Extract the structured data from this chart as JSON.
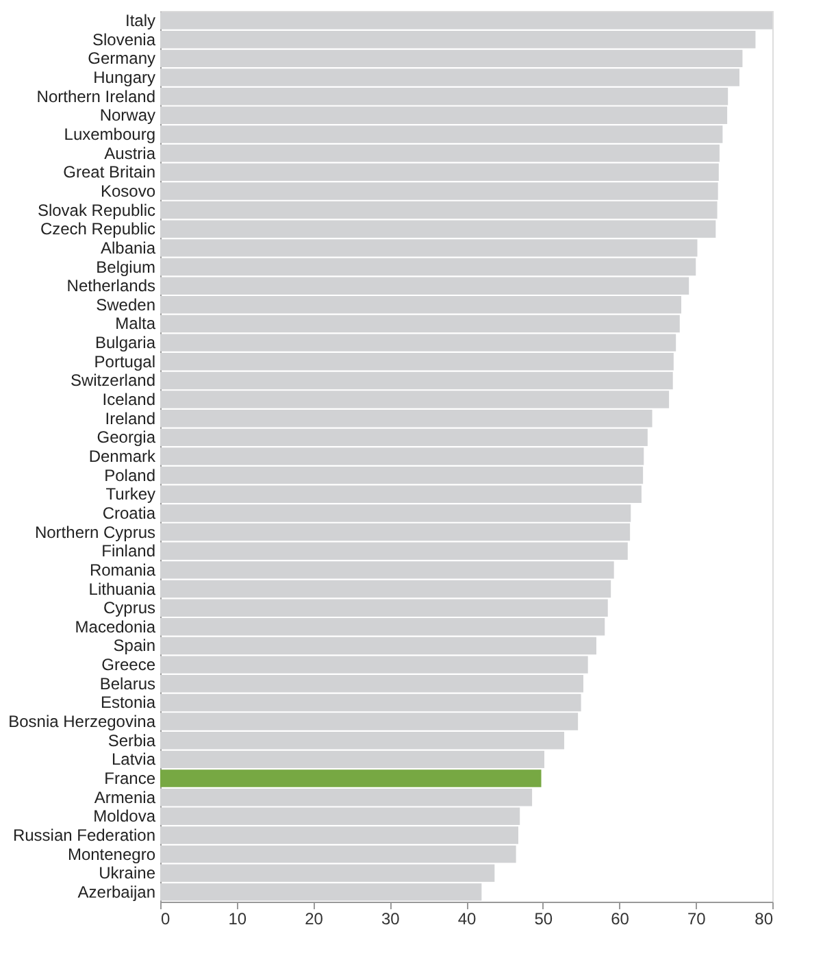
{
  "chart_data": {
    "type": "bar",
    "orientation": "horizontal",
    "categories": [
      "Italy",
      "Slovenia",
      "Germany",
      "Hungary",
      "Northern Ireland",
      "Norway",
      "Luxembourg",
      "Austria",
      "Great Britain",
      "Kosovo",
      "Slovak Republic",
      "Czech Republic",
      "Albania",
      "Belgium",
      "Netherlands",
      "Sweden",
      "Malta",
      "Bulgaria",
      "Portugal",
      "Switzerland",
      "Iceland",
      "Ireland",
      "Georgia",
      "Denmark",
      "Poland",
      "Turkey",
      "Croatia",
      "Northern Cyprus",
      "Finland",
      "Romania",
      "Lithuania",
      "Cyprus",
      "Macedonia",
      "Spain",
      "Greece",
      "Belarus",
      "Estonia",
      "Bosnia Herzegovina",
      "Serbia",
      "Latvia",
      "France",
      "Armenia",
      "Moldova",
      "Russian Federation",
      "Montenegro",
      "Ukraine",
      "Azerbaijan"
    ],
    "values": [
      80.0,
      77.8,
      76.1,
      75.7,
      74.2,
      74.1,
      73.5,
      73.1,
      73.0,
      72.9,
      72.8,
      72.6,
      70.2,
      70.0,
      69.1,
      68.1,
      67.9,
      67.4,
      67.1,
      67.0,
      66.5,
      64.3,
      63.7,
      63.2,
      63.1,
      62.9,
      61.5,
      61.4,
      61.1,
      59.3,
      58.9,
      58.5,
      58.1,
      57.0,
      55.9,
      55.3,
      55.0,
      54.6,
      52.8,
      50.2,
      49.8,
      48.6,
      47.0,
      46.8,
      46.5,
      43.7,
      42.0
    ],
    "colors": [
      "#d1d2d4",
      "#d1d2d4",
      "#d1d2d4",
      "#d1d2d4",
      "#d1d2d4",
      "#d1d2d4",
      "#d1d2d4",
      "#d1d2d4",
      "#d1d2d4",
      "#d1d2d4",
      "#d1d2d4",
      "#d1d2d4",
      "#d1d2d4",
      "#d1d2d4",
      "#d1d2d4",
      "#d1d2d4",
      "#d1d2d4",
      "#d1d2d4",
      "#d1d2d4",
      "#d1d2d4",
      "#d1d2d4",
      "#d1d2d4",
      "#d1d2d4",
      "#d1d2d4",
      "#d1d2d4",
      "#d1d2d4",
      "#d1d2d4",
      "#d1d2d4",
      "#d1d2d4",
      "#d1d2d4",
      "#d1d2d4",
      "#d1d2d4",
      "#d1d2d4",
      "#d1d2d4",
      "#d1d2d4",
      "#d1d2d4",
      "#d1d2d4",
      "#d1d2d4",
      "#d1d2d4",
      "#d1d2d4",
      "#77a843",
      "#d1d2d4",
      "#d1d2d4",
      "#d1d2d4",
      "#d1d2d4",
      "#d1d2d4",
      "#d1d2d4"
    ],
    "xlim": [
      0,
      80
    ],
    "xticks": [
      0,
      10,
      20,
      30,
      40,
      50,
      60,
      70,
      80
    ],
    "grid": false
  }
}
